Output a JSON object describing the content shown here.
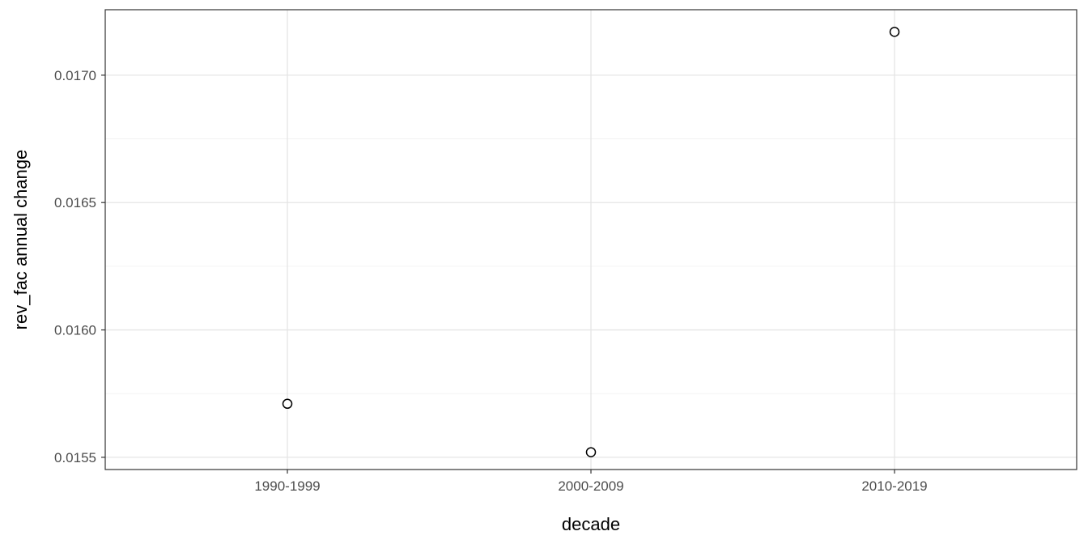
{
  "chart_data": {
    "type": "scatter",
    "title": "",
    "xlabel": "decade",
    "ylabel": "rev_fac annual change",
    "categories": [
      "1990-1999",
      "2000-2009",
      "2010-2019"
    ],
    "values": [
      0.01571,
      0.01552,
      0.01717
    ],
    "ylim": [
      0.015452,
      0.017257
    ],
    "yticks": [
      0.0155,
      0.016,
      0.0165,
      0.017
    ],
    "ytick_labels": [
      "0.0155",
      "0.0160",
      "0.0165",
      "0.0170"
    ],
    "grid": "horizontal major+minor, vertical major at categories",
    "legend": "none",
    "point_style": "open-circle",
    "colors": {
      "panel_bg": "#FFFFFF",
      "grid_major": "#E5E5E5",
      "grid_minor": "#F0F0F0",
      "panel_border": "#333333",
      "tick_text": "#4D4D4D",
      "title_text": "#000000",
      "point_fill": "#FFFFFF",
      "point_stroke": "#000000"
    }
  }
}
